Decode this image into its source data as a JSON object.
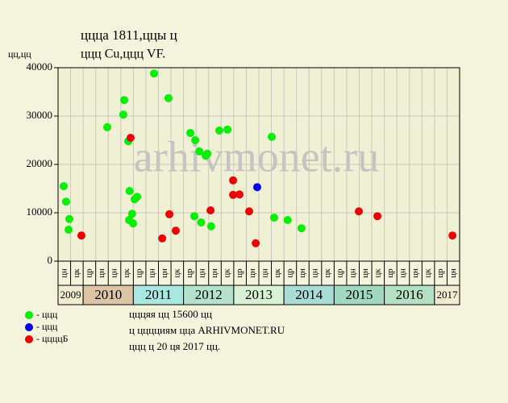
{
  "chart_data": {
    "type": "scatter",
    "title": "ццца 1811,ццы ц",
    "subtitle": "ццц Cu,ццц VF.",
    "y_label": "цц,цц",
    "watermark": "arhivmonet.ru",
    "xlim": [
      0,
      32
    ],
    "ylim": [
      0,
      40000
    ],
    "yticks": [
      0,
      10000,
      20000,
      30000,
      40000
    ],
    "grid": true,
    "categories": [
      "цн",
      "цк",
      "цр",
      "цн",
      "цн",
      "цк",
      "цр",
      "цн",
      "цн",
      "цк",
      "цр",
      "цн",
      "цн",
      "цк",
      "цр",
      "цн",
      "цн",
      "цк",
      "цр",
      "цн",
      "цн",
      "цк",
      "цр",
      "цн",
      "цн",
      "цк",
      "цр",
      "цн",
      "цн",
      "цк",
      "цр",
      "цн"
    ],
    "year_groups": [
      {
        "label": "2009",
        "span": 2,
        "color": "#f0ecd0"
      },
      {
        "label": "2010",
        "span": 4,
        "color": "#dcc4a4"
      },
      {
        "label": "2011",
        "span": 4,
        "color": "#a8e8e0"
      },
      {
        "label": "2012",
        "span": 4,
        "color": "#b4e2cc"
      },
      {
        "label": "2013",
        "span": 4,
        "color": "#d8f2d4"
      },
      {
        "label": "2014",
        "span": 4,
        "color": "#a8dcd4"
      },
      {
        "label": "2015",
        "span": 4,
        "color": "#a0d8c4"
      },
      {
        "label": "2016",
        "span": 4,
        "color": "#b4e0c4"
      },
      {
        "label": "2017",
        "span": 2,
        "color": "#f0ecd0"
      }
    ],
    "series": [
      {
        "name": "- ццц",
        "color": "#00ee00",
        "x": [
          0.45,
          0.64,
          0.9,
          0.84,
          3.92,
          5.27,
          5.2,
          5.6,
          5.7,
          5.66,
          5.9,
          5.98,
          6.1,
          6.3,
          7.65,
          8.8,
          10.54,
          10.93,
          11.25,
          11.76,
          11.9,
          10.86,
          11.4,
          12.2,
          12.85,
          13.5,
          17.03,
          17.22,
          18.3,
          19.4
        ],
        "values": [
          15500,
          12300,
          8700,
          6500,
          27700,
          33300,
          30300,
          24800,
          14500,
          8500,
          9800,
          7800,
          12800,
          13300,
          38800,
          33700,
          26500,
          25000,
          22700,
          21800,
          22200,
          9300,
          8000,
          7200,
          27000,
          27200,
          25700,
          9000,
          8500,
          6800
        ]
      },
      {
        "name": "- ццц",
        "color": "#0000ee",
        "x": [
          15.87
        ],
        "values": [
          15300
        ]
      },
      {
        "name": "- ццццБ",
        "color": "#ee0000",
        "x": [
          1.86,
          5.78,
          8.3,
          8.87,
          9.38,
          12.15,
          13.95,
          13.95,
          14.46,
          15.23,
          15.75,
          23.97,
          25.45,
          31.43
        ],
        "values": [
          5300,
          25500,
          4700,
          9700,
          6300,
          10500,
          16700,
          13700,
          13800,
          10300,
          3700,
          10300,
          9300,
          5300
        ]
      }
    ],
    "notes": [
      "цццяя цц 15600 цц",
      "ц цццциям цца ARHIVMONET.RU",
      "ццц ц 20 ця 2017 цц."
    ]
  }
}
